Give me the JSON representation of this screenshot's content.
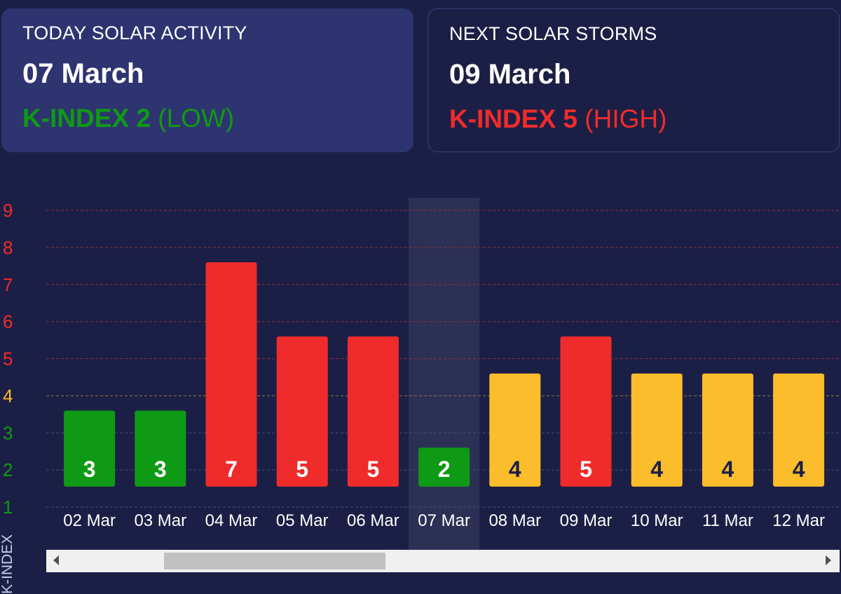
{
  "today_card": {
    "title": "TODAY SOLAR ACTIVITY",
    "date": "07 March",
    "kindex_label": "K-INDEX 2",
    "level": "(LOW)",
    "color": "#0e9a14"
  },
  "next_card": {
    "title": "NEXT SOLAR STORMS",
    "date": "09 March",
    "kindex_label": "K-INDEX 5",
    "level": "(HIGH)",
    "color": "#f02b2b"
  },
  "chart_data": {
    "type": "bar",
    "categories": [
      "02 Mar",
      "03 Mar",
      "04 Mar",
      "05 Mar",
      "06 Mar",
      "07 Mar",
      "08 Mar",
      "09 Mar",
      "10 Mar",
      "11 Mar",
      "12 Mar"
    ],
    "values": [
      3,
      3,
      7,
      5,
      5,
      2,
      4,
      5,
      4,
      4,
      4
    ],
    "ylabel": "K-INDEX",
    "yticks": [
      1,
      2,
      3,
      4,
      5,
      6,
      7,
      8,
      9
    ],
    "ylim": [
      1,
      9
    ],
    "highlighted_category": "07 Mar",
    "colors": {
      "low": "#0e9a14",
      "medium": "#fbbd2c",
      "high": "#f02b2b"
    },
    "grid": true
  },
  "scrollbar": {
    "left_arrow": "scroll-left-icon",
    "right_arrow": "scroll-right-icon"
  }
}
